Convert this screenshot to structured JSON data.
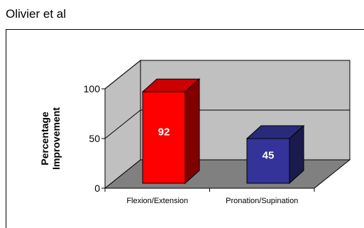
{
  "heading": "Olivier et al",
  "chart_data": {
    "type": "bar",
    "title": "",
    "categories": [
      "Flexion/Extension",
      "Pronation/Supination"
    ],
    "values": [
      92,
      45
    ],
    "data_labels": [
      "92",
      "45"
    ],
    "ylabel": "Percentage Improvement",
    "ylabel_lines": [
      "Percentage",
      "Improvement"
    ],
    "xlabel": "",
    "ylim": [
      0,
      100
    ],
    "yticks": [
      "0",
      "50",
      "100"
    ],
    "grid": true,
    "legend": "none",
    "style": "3d",
    "colors": {
      "bars": [
        "#ff0000",
        "#333399"
      ],
      "bar_sides": [
        "#800000",
        "#1a1a4d"
      ],
      "bar_tops": [
        "#cc0000",
        "#2a2a7a"
      ],
      "back_wall": "#c0c0c0",
      "floor": "#808080",
      "value_label": "#ffffff"
    }
  }
}
